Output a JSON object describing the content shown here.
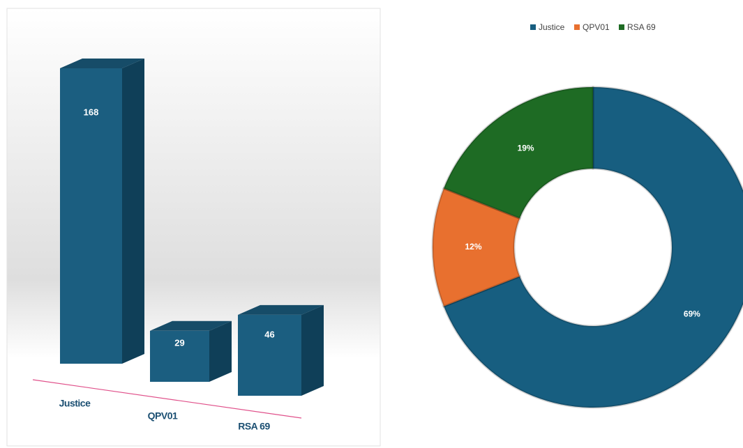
{
  "chart_data": [
    {
      "type": "bar3d",
      "categories": [
        "Justice",
        "QPV01",
        "RSA 69"
      ],
      "values": [
        168,
        29,
        46
      ],
      "color": "#1b5e80"
    },
    {
      "type": "donut",
      "categories": [
        "Justice",
        "QPV01",
        "RSA 69"
      ],
      "values": [
        69,
        12,
        19
      ],
      "value_labels": [
        "69%",
        "12%",
        "19%"
      ],
      "colors": [
        "#175e80",
        "#e8702f",
        "#1e6b24"
      ],
      "legend": "top"
    }
  ]
}
